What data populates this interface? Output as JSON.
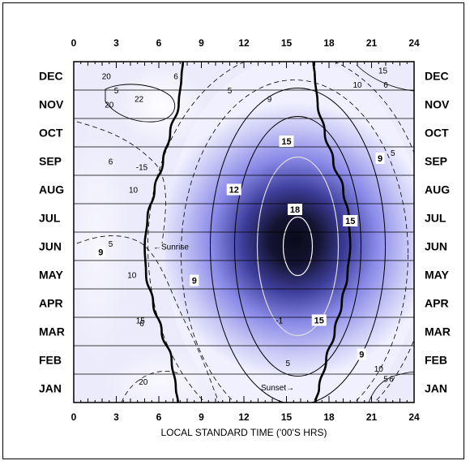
{
  "chart_data": {
    "type": "heatmap",
    "xlabel": "LOCAL STANDARD TIME ('00'S HRS)",
    "xlim": [
      0,
      24
    ],
    "x_ticks": [
      "0",
      "3",
      "6",
      "9",
      "12",
      "15",
      "18",
      "21",
      "24"
    ],
    "months": [
      "DEC",
      "NOV",
      "OCT",
      "SEP",
      "AUG",
      "JUL",
      "JUN",
      "MAY",
      "APR",
      "MAR",
      "FEB",
      "JAN"
    ],
    "peak": {
      "hour": 15.8,
      "month": "JUN",
      "value": 18
    },
    "contours_solid": [
      12,
      15,
      18
    ],
    "contours_dashed": [
      5,
      10,
      15,
      20
    ],
    "sunrise_hour_by_month": {
      "JAN": 7.2,
      "FEB": 6.9,
      "MAR": 6.2,
      "APR": 5.6,
      "MAY": 5.1,
      "JUN": 5.0,
      "JUL": 5.2,
      "AUG": 5.7,
      "SEP": 6.3,
      "OCT": 6.8,
      "NOV": 7.4,
      "DEC": 7.6
    },
    "sunset_hour_by_month": {
      "JAN": 17.3,
      "FEB": 17.8,
      "MAR": 18.4,
      "APR": 18.9,
      "MAY": 19.3,
      "JUN": 19.5,
      "JUL": 19.4,
      "AUG": 19.0,
      "SEP": 18.3,
      "OCT": 17.7,
      "NOV": 17.2,
      "DEC": 17.0
    },
    "annotations": {
      "sunrise": "←Sunrise",
      "sunset": "Sunset→"
    },
    "contour_labels": [
      {
        "text": "20",
        "hour": 2.3,
        "month": 11.5
      },
      {
        "text": "5",
        "hour": 3.0,
        "month": 11.0
      },
      {
        "text": "22",
        "hour": 4.6,
        "month": 10.7
      },
      {
        "text": "20",
        "hour": 2.5,
        "month": 10.5
      },
      {
        "text": "6",
        "hour": 7.2,
        "month": 11.5
      },
      {
        "text": "5",
        "hour": 11.0,
        "month": 11.0
      },
      {
        "text": "9",
        "hour": 13.8,
        "month": 10.7
      },
      {
        "text": "15",
        "hour": 21.8,
        "month": 11.7
      },
      {
        "text": "10",
        "hour": 20.0,
        "month": 11.2
      },
      {
        "text": "6",
        "hour": 22.0,
        "month": 11.2
      },
      {
        "text": "6",
        "hour": 2.6,
        "month": 8.5
      },
      {
        "text": "-15",
        "hour": 4.8,
        "month": 8.3
      },
      {
        "text": "10",
        "hour": 4.2,
        "month": 7.5
      },
      {
        "text": "5",
        "hour": 22.5,
        "month": 8.8
      },
      {
        "text": "5",
        "hour": 2.6,
        "month": 5.6
      },
      {
        "text": "10",
        "hour": 4.1,
        "month": 4.5
      },
      {
        "text": "6",
        "hour": 4.8,
        "month": 2.8
      },
      {
        "text": "15",
        "hour": 4.7,
        "month": 2.9
      },
      {
        "text": "-1",
        "hour": 14.5,
        "month": 2.9
      },
      {
        "text": "5",
        "hour": 15.1,
        "month": 1.4
      },
      {
        "text": "10",
        "hour": 21.5,
        "month": 1.2
      },
      {
        "text": "20",
        "hour": 4.9,
        "month": 0.75
      },
      {
        "text": "6",
        "hour": 22.4,
        "month": 0.85
      },
      {
        "text": "5",
        "hour": 22.0,
        "month": 0.85
      }
    ],
    "boxed_labels": [
      {
        "text": "15",
        "hour": 15.0,
        "month": 9.2
      },
      {
        "text": "12",
        "hour": 11.3,
        "month": 7.5
      },
      {
        "text": "9",
        "hour": 21.6,
        "month": 8.6
      },
      {
        "text": "18",
        "hour": 15.6,
        "month": 6.8
      },
      {
        "text": "15",
        "hour": 19.5,
        "month": 6.4
      },
      {
        "text": "9",
        "hour": 1.9,
        "month": 5.3
      },
      {
        "text": "9",
        "hour": 8.5,
        "month": 4.3
      },
      {
        "text": "15",
        "hour": 17.3,
        "month": 2.9
      },
      {
        "text": "9",
        "hour": 20.3,
        "month": 1.7
      }
    ]
  }
}
